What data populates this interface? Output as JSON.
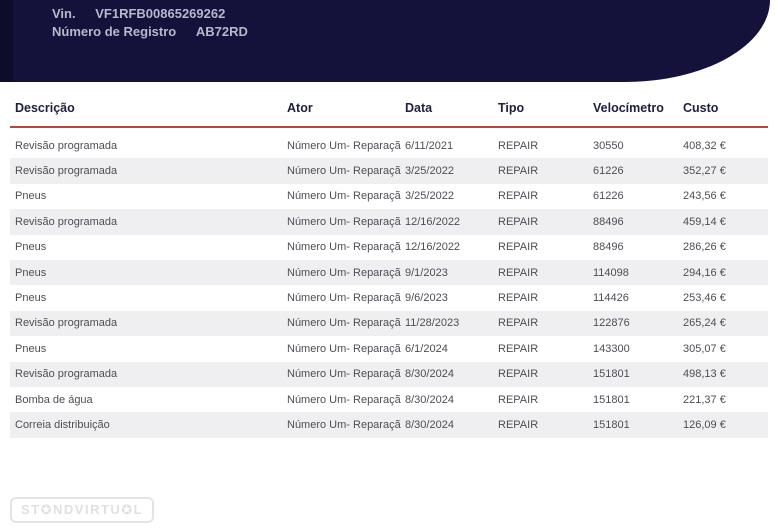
{
  "header": {
    "vin_label": "Vin.",
    "vin_value": "VF1RFB00865269262",
    "registry_label": "Número de Registro",
    "registry_value": "AB72RD",
    "background_color": "#14123a",
    "text_color": "#b6b9c8"
  },
  "table": {
    "columns": [
      {
        "key": "descricao",
        "label": "Descrição"
      },
      {
        "key": "ator",
        "label": "Ator"
      },
      {
        "key": "data",
        "label": "Data"
      },
      {
        "key": "tipo",
        "label": "Tipo"
      },
      {
        "key": "velocimetro",
        "label": "Velocímetro"
      },
      {
        "key": "custo",
        "label": "Custo"
      }
    ],
    "header_underline_color": "#b9453e",
    "stripe_color": "#efeff1",
    "rows": [
      {
        "descricao": "Revisão programada",
        "ator": "Número Um- Reparaçã",
        "data": "6/11/2021",
        "tipo": "REPAIR",
        "velocimetro": "30550",
        "custo": "408,32 €"
      },
      {
        "descricao": "Revisão programada",
        "ator": "Número Um- Reparaçã",
        "data": "3/25/2022",
        "tipo": "REPAIR",
        "velocimetro": "61226",
        "custo": "352,27 €"
      },
      {
        "descricao": "Pneus",
        "ator": "Número Um- Reparaçã",
        "data": "3/25/2022",
        "tipo": "REPAIR",
        "velocimetro": "61226",
        "custo": "243,56 €"
      },
      {
        "descricao": "Revisão programada",
        "ator": "Número Um- Reparaçã",
        "data": "12/16/2022",
        "tipo": "REPAIR",
        "velocimetro": "88496",
        "custo": "459,14 €"
      },
      {
        "descricao": "Pneus",
        "ator": "Número Um- Reparaçã",
        "data": "12/16/2022",
        "tipo": "REPAIR",
        "velocimetro": "88496",
        "custo": "286,26 €"
      },
      {
        "descricao": "Pneus",
        "ator": "Número Um- Reparaçã",
        "data": "9/1/2023",
        "tipo": "REPAIR",
        "velocimetro": "114098",
        "custo": "294,16 €"
      },
      {
        "descricao": "Pneus",
        "ator": "Número Um- Reparaçã",
        "data": "9/6/2023",
        "tipo": "REPAIR",
        "velocimetro": "114426",
        "custo": "253,46 €"
      },
      {
        "descricao": "Revisão programada",
        "ator": "Número Um- Reparaçã",
        "data": "11/28/2023",
        "tipo": "REPAIR",
        "velocimetro": "122876",
        "custo": "265,24 €"
      },
      {
        "descricao": "Pneus",
        "ator": "Número Um- Reparaçã",
        "data": "6/1/2024",
        "tipo": "REPAIR",
        "velocimetro": "143300",
        "custo": "305,07 €"
      },
      {
        "descricao": "Revisão programada",
        "ator": "Número Um- Reparaçã",
        "data": "8/30/2024",
        "tipo": "REPAIR",
        "velocimetro": "151801",
        "custo": "498,13 €"
      },
      {
        "descricao": "Bomba de água",
        "ator": "Número Um- Reparaçã",
        "data": "8/30/2024",
        "tipo": "REPAIR",
        "velocimetro": "151801",
        "custo": "221,37 €"
      },
      {
        "descricao": "Correia distribuição",
        "ator": "Número Um- Reparaçã",
        "data": "8/30/2024",
        "tipo": "REPAIR",
        "velocimetro": "151801",
        "custo": "126,09 €"
      }
    ]
  },
  "watermark": {
    "text": "ST✪NDVIRTU✪L"
  }
}
